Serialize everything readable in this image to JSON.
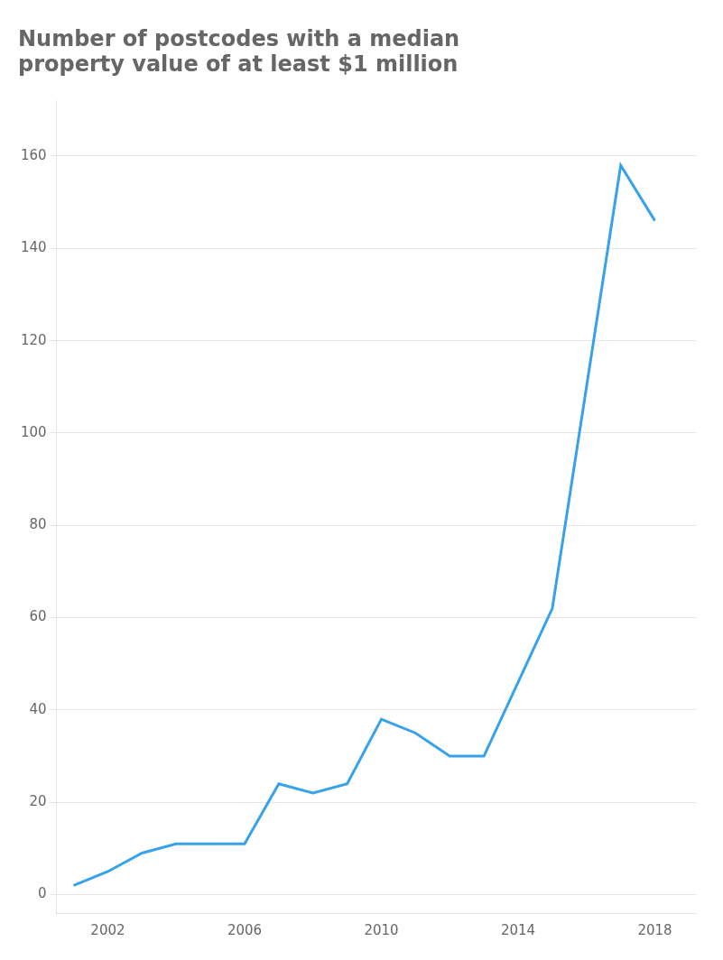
{
  "chart_data": {
    "type": "line",
    "title": "Number of postcodes with a median\nproperty value of at least $1 million",
    "x": [
      2001,
      2002,
      2003,
      2004,
      2005,
      2006,
      2007,
      2008,
      2009,
      2010,
      2011,
      2012,
      2013,
      2014,
      2015,
      2016,
      2017,
      2018
    ],
    "values": [
      2,
      5,
      9,
      11,
      11,
      11,
      24,
      22,
      24,
      38,
      35,
      30,
      30,
      46,
      62,
      110,
      158,
      146
    ],
    "xlim": [
      2000.5,
      2019.2
    ],
    "xticks": [
      2002,
      2006,
      2010,
      2014,
      2018
    ],
    "ylim": [
      -4,
      172
    ],
    "yticks": [
      0,
      20,
      40,
      60,
      80,
      100,
      120,
      140,
      160
    ],
    "grid": "y"
  }
}
